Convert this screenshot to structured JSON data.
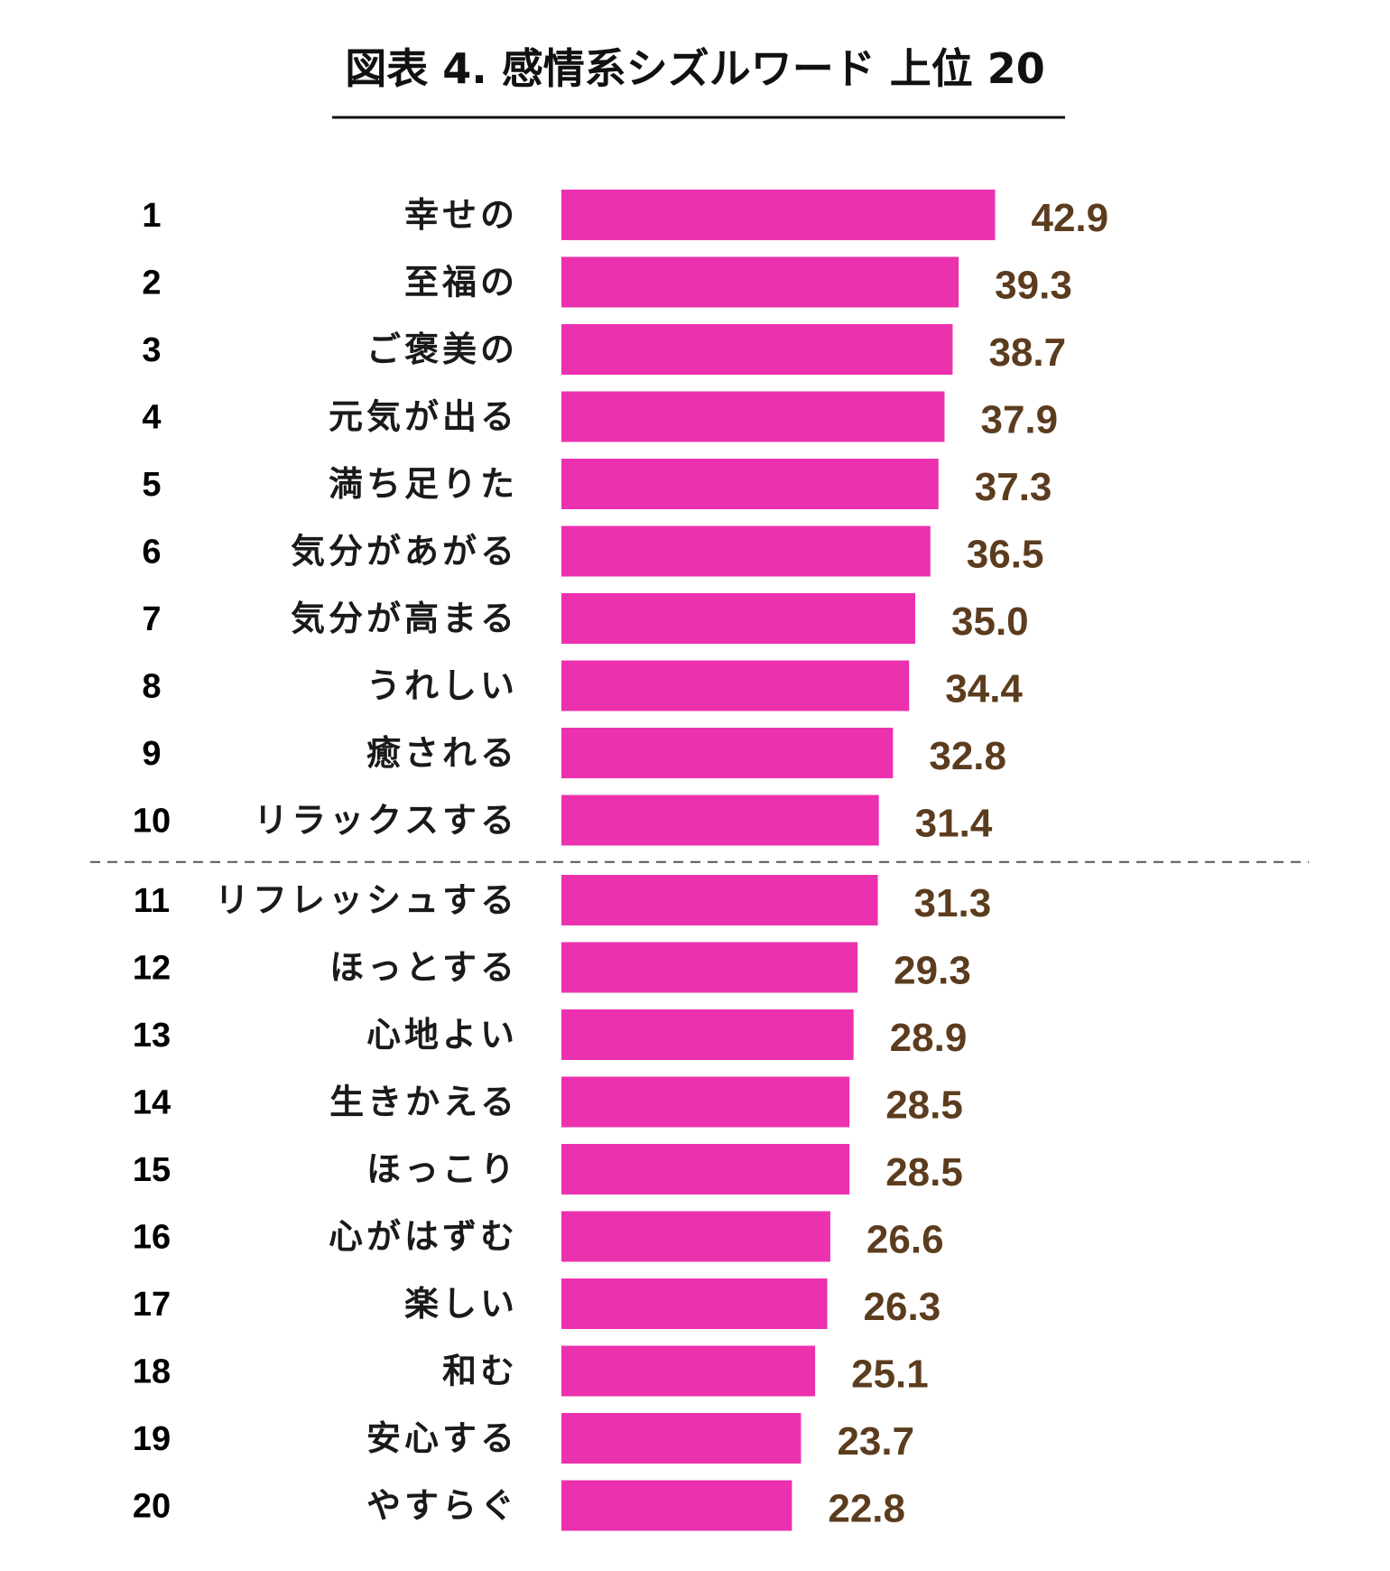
{
  "colors": {
    "bar": "#ec31ae",
    "value_label": "#5c3c1e",
    "text": "#000000",
    "divider": "#555555"
  },
  "chart_data": {
    "type": "bar",
    "orientation": "horizontal",
    "title": "図表 4. 感情系シズルワード 上位 20",
    "ranks": [
      "1",
      "2",
      "3",
      "4",
      "5",
      "6",
      "7",
      "8",
      "9",
      "10",
      "11",
      "12",
      "13",
      "14",
      "15",
      "16",
      "17",
      "18",
      "19",
      "20"
    ],
    "categories": [
      "幸せの",
      "至福の",
      "ご褒美の",
      "元気が出る",
      "満ち足りた",
      "気分があがる",
      "気分が高まる",
      "うれしい",
      "癒される",
      "リラックスする",
      "リフレッシュする",
      "ほっとする",
      "心地よい",
      "生きかえる",
      "ほっこり",
      "心がはずむ",
      "楽しい",
      "和む",
      "安心する",
      "やすらぐ"
    ],
    "values": [
      42.9,
      39.3,
      38.7,
      37.9,
      37.3,
      36.5,
      35.0,
      34.4,
      32.8,
      31.4,
      31.3,
      29.3,
      28.9,
      28.5,
      28.5,
      26.6,
      26.3,
      25.1,
      23.7,
      22.8
    ],
    "value_labels": [
      "42.9",
      "39.3",
      "38.7",
      "37.9",
      "37.3",
      "36.5",
      "35.0",
      "34.4",
      "32.8",
      "31.4",
      "31.3",
      "29.3",
      "28.9",
      "28.5",
      "28.5",
      "26.6",
      "26.3",
      "25.1",
      "23.7",
      "22.8"
    ],
    "divider_after_rank": 10,
    "xlim": [
      0,
      45
    ],
    "grid": false,
    "legend": "none"
  }
}
